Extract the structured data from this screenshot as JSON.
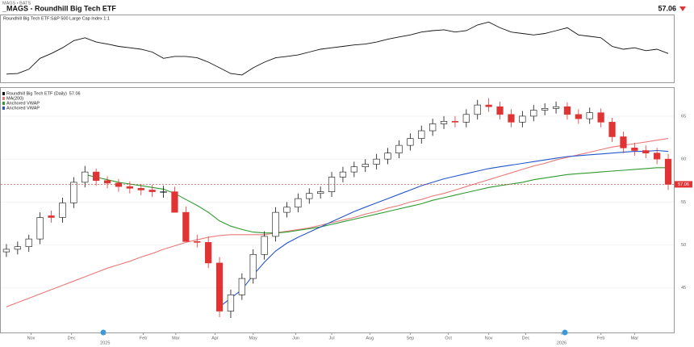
{
  "header": {
    "symbol": "MAGS • BATS",
    "title": "_MAGS - Roundhill Big Tech ETF",
    "price": 57.06
  },
  "chart_data": [
    {
      "type": "line",
      "title": "Roundhill Big Tech ETF:S&P 500 Large Cap Index 1:1",
      "ylim": [
        88,
        110
      ],
      "series": [
        {
          "name": "MAGS:$SPX",
          "color": "#111111",
          "values": [
            90.3,
            90.5,
            92.0,
            95.8,
            97.5,
            99.5,
            102.0,
            103.0,
            101.5,
            100.8,
            100.0,
            99.5,
            99.0,
            98.0,
            95.8,
            96.5,
            96.5,
            96.0,
            94.5,
            92.5,
            90.5,
            90.0,
            92.5,
            94.5,
            96.0,
            96.5,
            97.0,
            98.0,
            99.0,
            99.5,
            100.0,
            100.5,
            100.8,
            101.5,
            102.5,
            103.3,
            104.0,
            105.0,
            105.5,
            105.8,
            105.0,
            105.5,
            107.5,
            108.5,
            106.5,
            105.0,
            104.5,
            104.0,
            104.5,
            105.5,
            106.5,
            104.0,
            103.5,
            103.0,
            100.0,
            99.0,
            99.5,
            98.5,
            99.0,
            97.5
          ]
        }
      ]
    },
    {
      "type": "candlestick",
      "title": "Roundhill Big Tech ETF (Daily)",
      "up_color": "#ffffff",
      "down_color": "#e03434",
      "ylim": [
        40,
        68
      ],
      "yticks": [
        45,
        50,
        55,
        60,
        65
      ],
      "grid": true,
      "xticks": [
        {
          "value": 2.2,
          "label": "Nov"
        },
        {
          "value": 5.8,
          "label": "Dec"
        },
        {
          "value": 8.8,
          "label": "2025"
        },
        {
          "value": 12.2,
          "label": "Feb"
        },
        {
          "value": 15.1,
          "label": "Mar"
        },
        {
          "value": 18.6,
          "label": "Apr"
        },
        {
          "value": 22,
          "label": "May"
        },
        {
          "value": 25.8,
          "label": "Jun"
        },
        {
          "value": 29,
          "label": "Jul"
        },
        {
          "value": 32.4,
          "label": "Aug"
        },
        {
          "value": 36,
          "label": "Sep"
        },
        {
          "value": 39.4,
          "label": "Oct"
        },
        {
          "value": 43,
          "label": "Nov"
        },
        {
          "value": 46.3,
          "label": "Dec"
        },
        {
          "value": 49.5,
          "label": "2026"
        },
        {
          "value": 53,
          "label": "Feb"
        },
        {
          "value": 56,
          "label": "Mar"
        }
      ],
      "opens": [
        49.2,
        49.5,
        49.8,
        50.7,
        53.4,
        53.2,
        54.9,
        57.3,
        58.5,
        57.5,
        57.2,
        56.8,
        56.6,
        56.4,
        56.2,
        56.2,
        53.8,
        50.4,
        50.3,
        47.9,
        42.3,
        44.2,
        46.1,
        48.9,
        51.0,
        53.8,
        54.4,
        55.4,
        56.0,
        56.2,
        57.9,
        58.5,
        59.1,
        59.4,
        60.0,
        60.7,
        61.6,
        62.4,
        63.3,
        64.1,
        64.4,
        64.3,
        65.2,
        66.3,
        66.1,
        65.2,
        64.3,
        65.0,
        65.7,
        65.9,
        66.1,
        65.2,
        64.7,
        65.4,
        64.3,
        62.6,
        61.3,
        61.0,
        60.7,
        60.0
      ],
      "highs": [
        50.1,
        50.4,
        51.2,
        53.8,
        54.0,
        55.5,
        57.9,
        59.2,
        58.9,
        58.0,
        57.7,
        57.4,
        57.1,
        57.0,
        56.9,
        56.8,
        54.5,
        51.2,
        51.0,
        48.6,
        44.8,
        46.7,
        49.5,
        51.6,
        54.4,
        55.0,
        56.0,
        56.6,
        56.8,
        58.5,
        59.1,
        59.7,
        60.0,
        60.6,
        61.3,
        62.2,
        63.0,
        63.9,
        64.7,
        65.0,
        65.0,
        65.8,
        66.9,
        67.1,
        66.7,
        65.8,
        65.6,
        66.3,
        66.5,
        66.7,
        66.6,
        65.8,
        66.0,
        65.9,
        64.8,
        63.2,
        61.9,
        61.6,
        61.3,
        60.6
      ],
      "lows": [
        48.6,
        48.9,
        49.2,
        50.1,
        52.6,
        52.6,
        54.3,
        56.7,
        56.9,
        56.6,
        56.2,
        56.0,
        55.8,
        55.6,
        55.5,
        55.6,
        53.1,
        49.7,
        47.3,
        41.6,
        41.5,
        43.6,
        45.5,
        48.3,
        50.4,
        53.2,
        53.8,
        54.8,
        55.4,
        55.6,
        57.3,
        57.9,
        58.5,
        58.8,
        59.4,
        60.1,
        61.0,
        61.8,
        62.7,
        63.5,
        63.7,
        63.7,
        64.6,
        65.5,
        64.6,
        63.7,
        63.7,
        64.4,
        65.1,
        65.3,
        64.6,
        64.1,
        64.1,
        63.7,
        62.0,
        60.7,
        60.4,
        60.1,
        59.4,
        56.4
      ],
      "closes": [
        49.5,
        49.8,
        50.7,
        53.2,
        53.2,
        54.9,
        57.3,
        58.5,
        57.5,
        57.2,
        56.8,
        56.6,
        56.4,
        56.2,
        56.2,
        53.8,
        50.4,
        50.3,
        47.9,
        42.3,
        44.2,
        46.1,
        48.9,
        51.0,
        53.8,
        54.4,
        55.4,
        56.0,
        56.2,
        57.9,
        58.5,
        59.1,
        59.4,
        60.0,
        60.7,
        61.6,
        62.4,
        63.3,
        64.1,
        64.4,
        64.3,
        65.2,
        66.3,
        66.1,
        65.2,
        64.3,
        65.0,
        65.7,
        65.9,
        66.1,
        65.2,
        64.7,
        65.4,
        64.3,
        62.6,
        61.3,
        61.0,
        60.7,
        60.0,
        57.06
      ],
      "series": [
        {
          "name": "MA(200)",
          "color": "#e87a7a",
          "values": [
            42.8,
            43.3,
            43.8,
            44.3,
            44.8,
            45.3,
            45.8,
            46.3,
            46.8,
            47.3,
            47.7,
            48.1,
            48.6,
            49.0,
            49.5,
            49.9,
            50.3,
            50.6,
            50.9,
            51.1,
            51.2,
            51.2,
            51.2,
            51.2,
            51.4,
            51.6,
            51.8,
            52.0,
            52.3,
            52.6,
            52.9,
            53.2,
            53.6,
            53.9,
            54.3,
            54.6,
            55.0,
            55.3,
            55.7,
            56.0,
            56.4,
            56.8,
            57.2,
            57.6,
            58.0,
            58.4,
            58.8,
            59.2,
            59.5,
            59.9,
            60.2,
            60.5,
            60.8,
            61.1,
            61.4,
            61.6,
            61.8,
            62.0,
            62.2,
            62.4
          ]
        },
        {
          "name": "Anchored VWAP",
          "color": "#2f9a2f",
          "values": [
            null,
            null,
            null,
            null,
            null,
            null,
            null,
            58.2,
            57.9,
            57.6,
            57.3,
            57.1,
            56.9,
            56.7,
            56.5,
            56.0,
            55.3,
            54.6,
            53.8,
            52.8,
            52.2,
            51.8,
            51.5,
            51.4,
            51.4,
            51.5,
            51.7,
            51.9,
            52.1,
            52.4,
            52.7,
            53.0,
            53.3,
            53.6,
            53.9,
            54.2,
            54.5,
            54.8,
            55.2,
            55.5,
            55.8,
            56.1,
            56.4,
            56.7,
            56.9,
            57.1,
            57.3,
            57.6,
            57.8,
            58.0,
            58.2,
            58.3,
            58.4,
            58.5,
            58.6,
            58.7,
            58.8,
            58.9,
            59.0,
            59.0
          ]
        },
        {
          "name": "Anchored VWAP",
          "color": "#2255cc",
          "values": [
            null,
            null,
            null,
            null,
            null,
            null,
            null,
            null,
            null,
            null,
            null,
            null,
            null,
            null,
            null,
            null,
            null,
            null,
            null,
            42.8,
            43.8,
            44.8,
            46.5,
            48.0,
            49.3,
            50.2,
            50.9,
            51.5,
            52.1,
            52.7,
            53.3,
            53.9,
            54.4,
            54.9,
            55.4,
            55.9,
            56.4,
            56.9,
            57.3,
            57.7,
            58.0,
            58.3,
            58.6,
            58.9,
            59.1,
            59.3,
            59.5,
            59.7,
            59.9,
            60.1,
            60.3,
            60.4,
            60.5,
            60.6,
            60.7,
            60.8,
            60.9,
            60.9,
            61.0,
            60.9
          ]
        }
      ]
    }
  ]
}
